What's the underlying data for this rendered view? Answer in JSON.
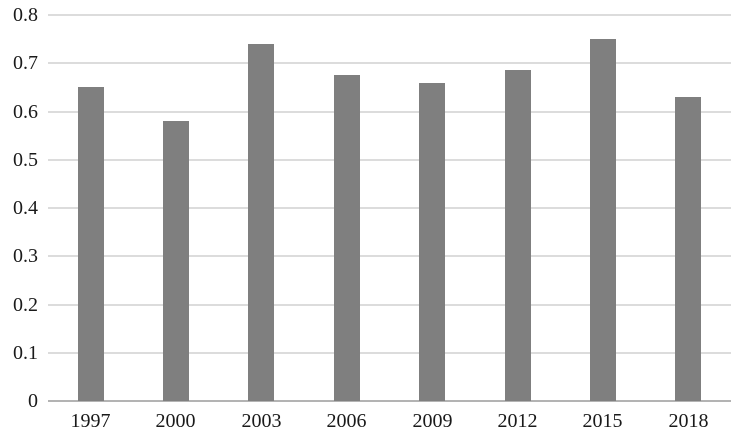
{
  "chart_data": {
    "type": "bar",
    "title": "",
    "xlabel": "",
    "ylabel": "",
    "categories": [
      "1997",
      "2000",
      "2003",
      "2006",
      "2009",
      "2012",
      "2015",
      "2018"
    ],
    "values": [
      0.65,
      0.58,
      0.74,
      0.675,
      0.66,
      0.685,
      0.75,
      0.63
    ],
    "series_name": "",
    "ylim": [
      0,
      0.8
    ],
    "ytick_step": 0.1,
    "ytick_labels": [
      "0",
      "0.1",
      "0.2",
      "0.3",
      "0.4",
      "0.5",
      "0.6",
      "0.7",
      "0.8"
    ],
    "grid": true,
    "legend": "none",
    "colors": {
      "bar": "#7f7f7f",
      "gridline": "#dcdcdc",
      "axis_line": "#b3b3b3",
      "text": "#1a1a1a",
      "background": "#ffffff"
    }
  }
}
